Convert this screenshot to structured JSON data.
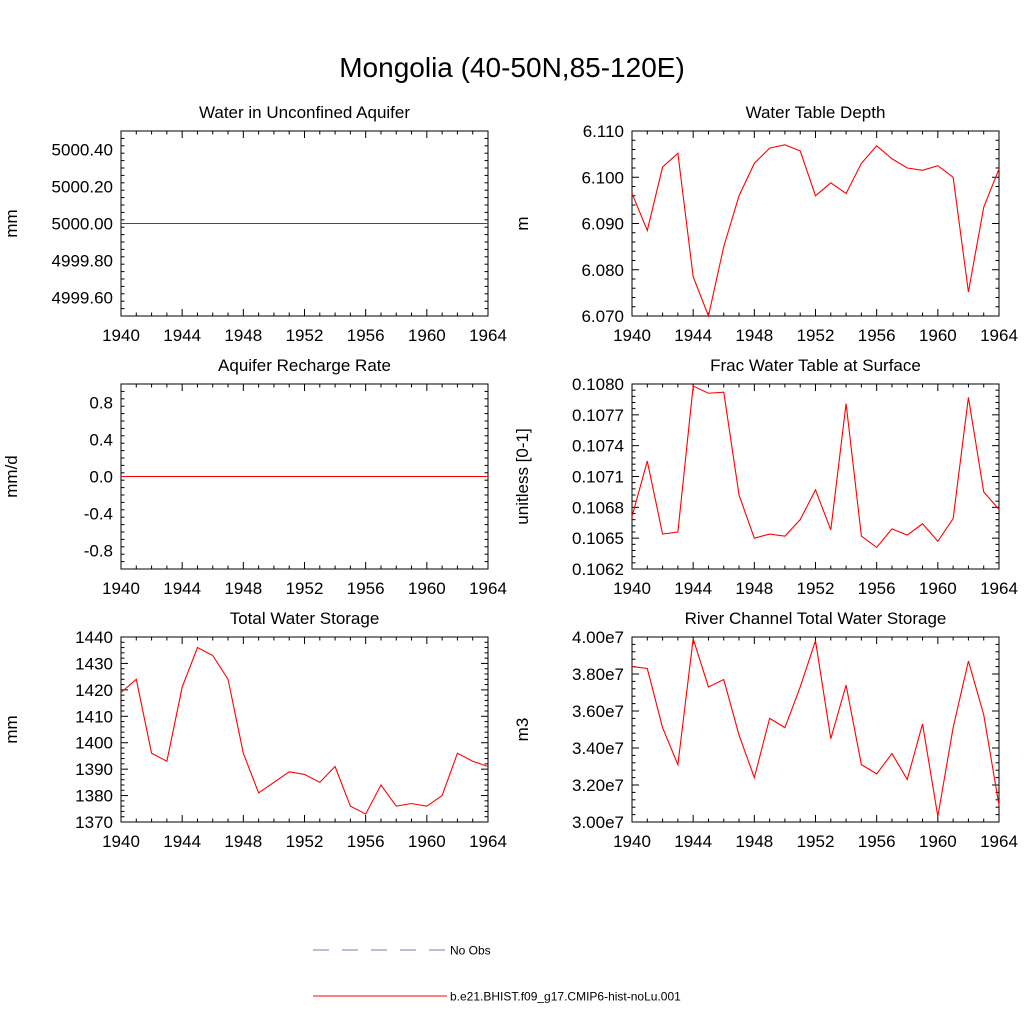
{
  "figure": {
    "title": "Mongolia (40-50N,85-120E)"
  },
  "legend": {
    "entries": [
      {
        "label": "No Obs",
        "color": "#7b7bb0",
        "style": "dashed"
      },
      {
        "label": "b.e21.BHIST.f09_g17.CMIP6-hist-noLu.001",
        "color": "#ff0000",
        "style": "solid"
      }
    ]
  },
  "chart_data": [
    {
      "type": "line",
      "title": "Water in Unconfined Aquifer",
      "xlabel": "",
      "ylabel": "mm",
      "xlim": [
        1940,
        1964
      ],
      "ylim": [
        4999.5,
        5000.5
      ],
      "xticks": [
        1940,
        1944,
        1948,
        1952,
        1956,
        1960,
        1964
      ],
      "yticks": [
        4999.6,
        4999.8,
        5000.0,
        5000.2,
        5000.4
      ],
      "ytick_labels": [
        "4999.60",
        "4999.80",
        "5000.00",
        "5000.20",
        "5000.40"
      ],
      "series": [
        {
          "color": "#ff0000",
          "x": [
            1940,
            1941,
            1942,
            1943,
            1944,
            1945,
            1946,
            1947,
            1948,
            1949,
            1950,
            1951,
            1952,
            1953,
            1954,
            1955,
            1956,
            1957,
            1958,
            1959,
            1960,
            1961,
            1962,
            1963,
            1964
          ],
          "values": [
            5000,
            5000,
            5000,
            5000,
            5000,
            5000,
            5000,
            5000,
            5000,
            5000,
            5000,
            5000,
            5000,
            5000,
            5000,
            5000,
            5000,
            5000,
            5000,
            5000,
            5000,
            5000,
            5000,
            5000,
            5000
          ]
        }
      ]
    },
    {
      "type": "line",
      "title": "Water Table Depth",
      "xlabel": "",
      "ylabel": "m",
      "xlim": [
        1940,
        1964
      ],
      "ylim": [
        6.07,
        6.11
      ],
      "xticks": [
        1940,
        1944,
        1948,
        1952,
        1956,
        1960,
        1964
      ],
      "yticks": [
        6.07,
        6.08,
        6.09,
        6.1,
        6.11
      ],
      "ytick_labels": [
        "6.070",
        "6.080",
        "6.090",
        "6.100",
        "6.110"
      ],
      "series": [
        {
          "color": "#ff0000",
          "x": [
            1940,
            1941,
            1942,
            1943,
            1944,
            1945,
            1946,
            1947,
            1948,
            1949,
            1950,
            1951,
            1952,
            1953,
            1954,
            1955,
            1956,
            1957,
            1958,
            1959,
            1960,
            1961,
            1962,
            1963,
            1964
          ],
          "values": [
            6.0965,
            6.0885,
            6.1022,
            6.1052,
            6.0785,
            6.07,
            6.085,
            6.096,
            6.103,
            6.1063,
            6.107,
            6.1057,
            6.096,
            6.0988,
            6.0965,
            6.103,
            6.1068,
            6.104,
            6.102,
            6.1015,
            6.1025,
            6.1,
            6.0752,
            6.0935,
            6.1018
          ]
        }
      ]
    },
    {
      "type": "line",
      "title": "Aquifer Recharge Rate",
      "xlabel": "",
      "ylabel": "mm/d",
      "xlim": [
        1940,
        1964
      ],
      "ylim": [
        -1.0,
        1.0
      ],
      "xticks": [
        1940,
        1944,
        1948,
        1952,
        1956,
        1960,
        1964
      ],
      "yticks": [
        -0.8,
        -0.4,
        0.0,
        0.4,
        0.8
      ],
      "ytick_labels": [
        "-0.8",
        "-0.4",
        "0.0",
        "0.4",
        "0.8"
      ],
      "series": [
        {
          "color": "#ff0000",
          "x": [
            1940,
            1941,
            1942,
            1943,
            1944,
            1945,
            1946,
            1947,
            1948,
            1949,
            1950,
            1951,
            1952,
            1953,
            1954,
            1955,
            1956,
            1957,
            1958,
            1959,
            1960,
            1961,
            1962,
            1963,
            1964
          ],
          "values": [
            0,
            0,
            0,
            0,
            0,
            0,
            0,
            0,
            0,
            0,
            0,
            0,
            0,
            0,
            0,
            0,
            0,
            0,
            0,
            0,
            0,
            0,
            0,
            0,
            0
          ]
        }
      ]
    },
    {
      "type": "line",
      "title": "Frac Water Table at Surface",
      "xlabel": "",
      "ylabel": "unitless [0-1]",
      "xlim": [
        1940,
        1964
      ],
      "ylim": [
        0.1062,
        0.108
      ],
      "xticks": [
        1940,
        1944,
        1948,
        1952,
        1956,
        1960,
        1964
      ],
      "yticks": [
        0.1062,
        0.1065,
        0.1068,
        0.1071,
        0.1074,
        0.1077,
        0.108
      ],
      "ytick_labels": [
        "0.1062",
        "0.1065",
        "0.1068",
        "0.1071",
        "0.1074",
        "0.1077",
        "0.1080"
      ],
      "series": [
        {
          "color": "#ff0000",
          "x": [
            1940,
            1941,
            1942,
            1943,
            1944,
            1945,
            1946,
            1947,
            1948,
            1949,
            1950,
            1951,
            1952,
            1953,
            1954,
            1955,
            1956,
            1957,
            1958,
            1959,
            1960,
            1961,
            1962,
            1963,
            1964
          ],
          "values": [
            0.10671,
            0.10725,
            0.10654,
            0.10656,
            0.10798,
            0.10791,
            0.10792,
            0.10692,
            0.1065,
            0.10654,
            0.10652,
            0.10668,
            0.10697,
            0.10658,
            0.10781,
            0.10652,
            0.10641,
            0.10659,
            0.10653,
            0.10664,
            0.10647,
            0.10669,
            0.10787,
            0.10695,
            0.10678
          ]
        }
      ]
    },
    {
      "type": "line",
      "title": "Total Water Storage",
      "xlabel": "",
      "ylabel": "mm",
      "xlim": [
        1940,
        1964
      ],
      "ylim": [
        1370,
        1440
      ],
      "xticks": [
        1940,
        1944,
        1948,
        1952,
        1956,
        1960,
        1964
      ],
      "yticks": [
        1370,
        1380,
        1390,
        1400,
        1410,
        1420,
        1430,
        1440
      ],
      "ytick_labels": [
        "1370",
        "1380",
        "1390",
        "1400",
        "1410",
        "1420",
        "1430",
        "1440"
      ],
      "series": [
        {
          "color": "#ff0000",
          "x": [
            1940,
            1941,
            1942,
            1943,
            1944,
            1945,
            1946,
            1947,
            1948,
            1949,
            1950,
            1951,
            1952,
            1953,
            1954,
            1955,
            1956,
            1957,
            1958,
            1959,
            1960,
            1961,
            1962,
            1963,
            1964
          ],
          "values": [
            1419,
            1424,
            1396,
            1393,
            1421,
            1436,
            1433,
            1424,
            1396,
            1381,
            1385,
            1389,
            1388,
            1385,
            1391,
            1376,
            1373,
            1384,
            1376,
            1377,
            1376,
            1380,
            1396,
            1393,
            1391
          ]
        }
      ]
    },
    {
      "type": "line",
      "title": "River Channel Total Water Storage",
      "xlabel": "",
      "ylabel": "m3",
      "xlim": [
        1940,
        1964
      ],
      "ylim": [
        30000000,
        40000000
      ],
      "xticks": [
        1940,
        1944,
        1948,
        1952,
        1956,
        1960,
        1964
      ],
      "yticks": [
        30000000,
        32000000,
        34000000,
        36000000,
        38000000,
        40000000
      ],
      "ytick_labels": [
        "3.00e7",
        "3.20e7",
        "3.40e7",
        "3.60e7",
        "3.80e7",
        "4.00e7"
      ],
      "series": [
        {
          "color": "#ff0000",
          "x": [
            1940,
            1941,
            1942,
            1943,
            1944,
            1945,
            1946,
            1947,
            1948,
            1949,
            1950,
            1951,
            1952,
            1953,
            1954,
            1955,
            1956,
            1957,
            1958,
            1959,
            1960,
            1961,
            1962,
            1963,
            1964
          ],
          "values": [
            38400000,
            38300000,
            35100000,
            33100000,
            39900000,
            37300000,
            37700000,
            34700000,
            32400000,
            35600000,
            35100000,
            37300000,
            39800000,
            34500000,
            37400000,
            33100000,
            32600000,
            33700000,
            32300000,
            35300000,
            30300000,
            35100000,
            38700000,
            35800000,
            30900000
          ]
        }
      ]
    }
  ]
}
